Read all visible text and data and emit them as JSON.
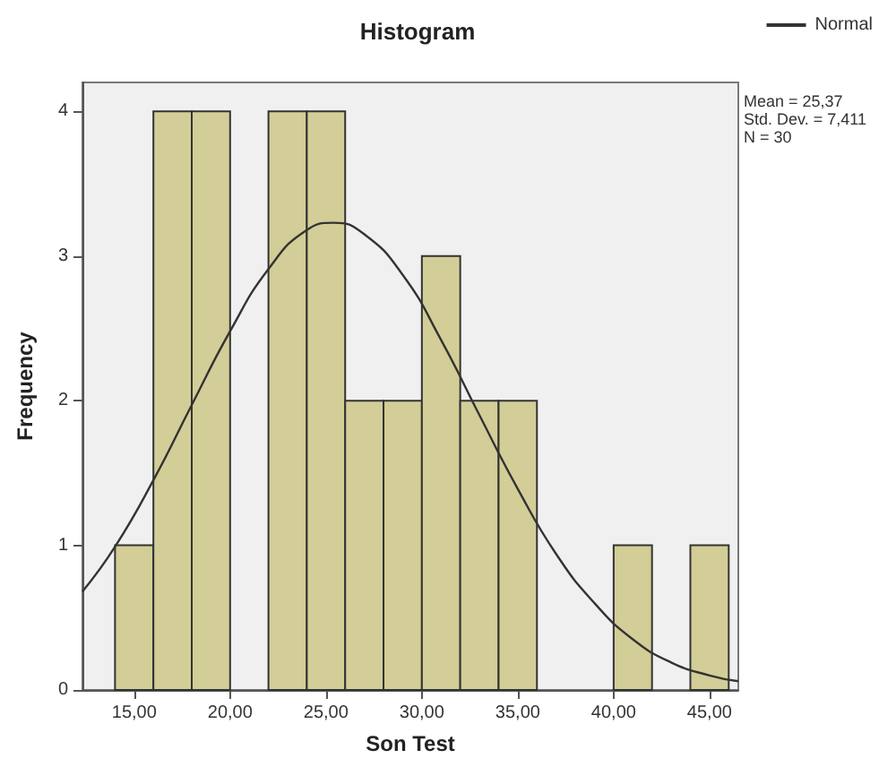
{
  "chart_data": {
    "type": "histogram",
    "title": "Histogram",
    "xlabel": "Son Test",
    "ylabel": "Frequency",
    "bins": [
      14,
      16,
      18,
      20,
      22,
      24,
      26,
      28,
      30,
      32,
      34,
      36,
      38,
      40,
      42,
      44,
      46
    ],
    "series": [
      {
        "color": "#d3ce97",
        "values": [
          1,
          4,
          4,
          0,
          4,
          4,
          2,
          2,
          3,
          2,
          2,
          0,
          0,
          1,
          0,
          1
        ]
      },
      {
        "type": "line",
        "name": "Normal",
        "color": "#333333",
        "x": [
          12.3,
          14,
          16,
          18,
          20,
          22,
          24,
          25.4,
          27,
          29,
          31,
          33,
          35,
          37,
          39,
          41,
          43,
          45,
          46.5
        ],
        "values": [
          0.68,
          0.99,
          1.45,
          1.97,
          2.48,
          2.91,
          3.18,
          3.23,
          3.15,
          2.87,
          2.42,
          1.9,
          1.39,
          0.94,
          0.6,
          0.35,
          0.19,
          0.1,
          0.06
        ]
      }
    ],
    "xlim": [
      12.3,
      46.5
    ],
    "ylim": [
      0,
      4.2
    ],
    "xticks": [
      {
        "value": 15,
        "label": "15,00"
      },
      {
        "value": 20,
        "label": "20,00"
      },
      {
        "value": 25,
        "label": "25,00"
      },
      {
        "value": 30,
        "label": "30,00"
      },
      {
        "value": 35,
        "label": "35,00"
      },
      {
        "value": 40,
        "label": "40,00"
      },
      {
        "value": 45,
        "label": "45,00"
      }
    ],
    "yticks": [
      0,
      1,
      2,
      3,
      4
    ],
    "grid": false,
    "legend": "top right",
    "annotations": [
      "Mean = 25,37",
      "Std. Dev. = 7,411",
      "N = 30"
    ]
  }
}
